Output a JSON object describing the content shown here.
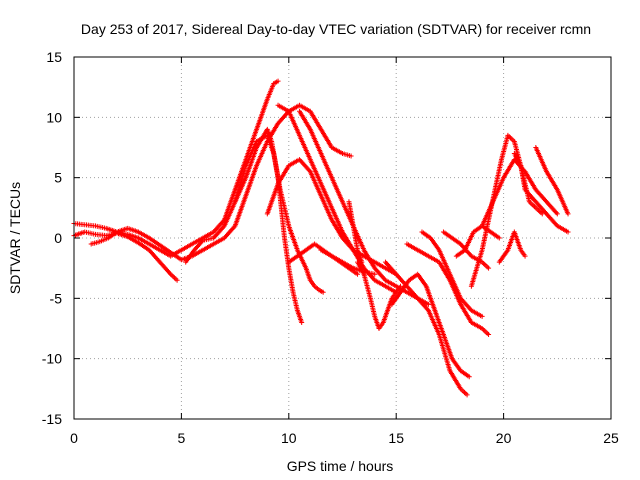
{
  "chart_data": {
    "type": "scatter",
    "title": "Day 253 of 2017, Sidereal Day-to-day VTEC variation (SDTVAR) for receiver rcmn",
    "xlabel": "GPS time / hours",
    "ylabel": "SDTVAR / TECUs",
    "xlim": [
      0,
      25
    ],
    "ylim": [
      -15,
      15
    ],
    "x_ticks": [
      "0",
      "5",
      "10",
      "15",
      "20",
      "25"
    ],
    "y_ticks": [
      "15",
      "10",
      "5",
      "0",
      "-5",
      "-10",
      "-15"
    ],
    "grid": true,
    "marker": "+",
    "color": "#ff0000",
    "series": [
      {
        "x": [
          0.0,
          0.5,
          1.0,
          1.5,
          2.0,
          2.5,
          3.0,
          3.5,
          4.0,
          4.5,
          5.0,
          5.5,
          6.0,
          6.5,
          7.0,
          7.5,
          8.0,
          8.5,
          9.0,
          9.3,
          9.5
        ],
        "values": [
          1.2,
          1.1,
          1.0,
          0.8,
          0.5,
          0.3,
          0.0,
          -0.5,
          -1.0,
          -1.5,
          -1.0,
          -0.5,
          0.0,
          0.5,
          1.5,
          4.0,
          6.5,
          9.0,
          11.5,
          12.8,
          13.0
        ]
      },
      {
        "x": [
          0.0,
          0.5,
          1.0,
          1.5,
          2.0,
          2.5,
          3.0,
          3.5,
          4.0,
          4.5,
          4.8
        ],
        "values": [
          0.2,
          0.5,
          0.3,
          0.2,
          0.4,
          0.1,
          -0.4,
          -1.0,
          -2.0,
          -3.0,
          -3.5
        ]
      },
      {
        "x": [
          0.8,
          1.2,
          1.6,
          2.0,
          2.5,
          3.0,
          3.5,
          4.0,
          4.5,
          5.0,
          5.5,
          6.0,
          6.5,
          7.0,
          7.5,
          8.0,
          8.5,
          9.0,
          9.5,
          10.0,
          10.5,
          11.0,
          11.5,
          12.0,
          12.5,
          12.9
        ],
        "values": [
          -0.5,
          -0.3,
          0.0,
          0.5,
          0.8,
          0.5,
          0.0,
          -0.6,
          -1.2,
          -1.8,
          -1.5,
          -1.0,
          -0.5,
          0.0,
          1.0,
          3.5,
          6.0,
          8.0,
          9.5,
          10.5,
          11.0,
          10.5,
          9.0,
          7.5,
          7.0,
          6.8
        ]
      },
      {
        "x": [
          5.2,
          5.6,
          6.0,
          6.5,
          7.0,
          7.5,
          8.0,
          8.5,
          9.0,
          9.2,
          9.5,
          9.8,
          10.0,
          10.2,
          10.4,
          10.6
        ],
        "values": [
          -2.0,
          -1.0,
          -0.2,
          0.0,
          1.0,
          3.0,
          5.0,
          7.5,
          9.0,
          8.0,
          5.0,
          0.0,
          -2.5,
          -4.5,
          -6.0,
          -7.0
        ]
      },
      {
        "x": [
          7.5,
          8.0,
          8.5,
          9.0,
          9.3,
          9.6,
          10.0,
          10.4,
          10.8,
          11.0,
          11.2,
          11.4,
          11.6
        ],
        "values": [
          3.0,
          6.0,
          8.0,
          8.5,
          7.0,
          4.0,
          1.0,
          -1.0,
          -2.5,
          -3.5,
          -4.0,
          -4.3,
          -4.5
        ]
      },
      {
        "x": [
          9.0,
          9.5,
          10.0,
          10.5,
          11.0,
          11.5,
          12.0,
          12.5,
          13.0,
          13.5,
          14.0,
          14.5,
          15.0
        ],
        "values": [
          2.0,
          4.5,
          6.0,
          6.5,
          5.5,
          3.5,
          1.5,
          0.0,
          -1.0,
          -1.5,
          -2.0,
          -2.5,
          -3.0
        ]
      },
      {
        "x": [
          9.5,
          10.0,
          10.5,
          11.0,
          11.5,
          12.0,
          12.5,
          13.0,
          13.5,
          14.0,
          14.5,
          15.0
        ],
        "values": [
          11.0,
          10.5,
          8.5,
          6.5,
          4.5,
          2.5,
          0.5,
          -1.0,
          -2.5,
          -3.5,
          -4.0,
          -4.5
        ]
      },
      {
        "x": [
          10.0,
          10.4,
          10.8,
          11.2,
          11.6,
          12.0,
          12.4,
          12.8,
          13.2
        ],
        "values": [
          -2.0,
          -1.5,
          -1.0,
          -0.5,
          -1.0,
          -1.5,
          -2.0,
          -2.5,
          -3.0
        ]
      },
      {
        "x": [
          10.5,
          11.0,
          11.5,
          12.0,
          12.5,
          13.0,
          13.5,
          14.0,
          14.5,
          15.0,
          15.5,
          16.0,
          16.5
        ],
        "values": [
          10.5,
          9.0,
          7.0,
          5.0,
          3.0,
          1.0,
          -1.0,
          -2.5,
          -3.5,
          -4.0,
          -4.5,
          -5.0,
          -5.5
        ]
      },
      {
        "x": [
          11.5,
          12.0,
          12.5,
          13.0,
          13.5,
          14.0
        ],
        "values": [
          -1.0,
          -1.5,
          -2.0,
          -2.5,
          -2.8,
          -3.0
        ]
      },
      {
        "x": [
          12.8,
          13.0,
          13.2,
          13.4
        ],
        "values": [
          3.0,
          1.0,
          -1.0,
          -2.0
        ]
      },
      {
        "x": [
          13.2,
          13.5,
          13.8,
          14.0,
          14.2,
          14.4,
          14.6,
          14.8,
          15.0,
          15.2
        ],
        "values": [
          -2.0,
          -3.0,
          -5.0,
          -6.5,
          -7.5,
          -7.0,
          -6.0,
          -5.0,
          -4.5,
          -4.0
        ]
      },
      {
        "x": [
          14.8,
          15.2,
          15.6,
          16.0,
          16.4,
          16.8,
          17.2,
          17.6,
          18.0,
          18.4
        ],
        "values": [
          -5.5,
          -4.5,
          -3.5,
          -3.0,
          -4.0,
          -6.0,
          -8.0,
          -10.0,
          -11.0,
          -11.5
        ]
      },
      {
        "x": [
          14.5,
          15.0,
          15.5,
          16.0,
          16.5,
          17.0,
          17.5,
          18.0,
          18.3
        ],
        "values": [
          -2.0,
          -3.0,
          -4.0,
          -5.0,
          -6.0,
          -8.0,
          -11.0,
          -12.5,
          -13.0
        ]
      },
      {
        "x": [
          15.5,
          16.0,
          16.5,
          17.0,
          17.5,
          18.0,
          18.5,
          19.0,
          19.3
        ],
        "values": [
          -0.5,
          -1.0,
          -1.5,
          -2.0,
          -3.5,
          -5.5,
          -7.0,
          -7.5,
          -8.0
        ]
      },
      {
        "x": [
          16.2,
          16.6,
          17.0,
          17.5,
          18.0,
          18.5,
          19.0
        ],
        "values": [
          0.5,
          0.0,
          -1.0,
          -3.0,
          -5.0,
          -6.0,
          -6.5
        ]
      },
      {
        "x": [
          17.2,
          17.6,
          18.0,
          18.5,
          19.0,
          19.3
        ],
        "values": [
          0.5,
          0.0,
          -0.5,
          -1.5,
          -2.0,
          -2.5
        ]
      },
      {
        "x": [
          17.8,
          18.2,
          18.6,
          19.0,
          19.4,
          19.8
        ],
        "values": [
          -1.5,
          -1.0,
          0.5,
          1.0,
          0.5,
          0.0
        ]
      },
      {
        "x": [
          18.5,
          19.0,
          19.3,
          19.6,
          19.9,
          20.2,
          20.5,
          20.8,
          21.0,
          21.5,
          22.0,
          22.5,
          23.0
        ],
        "values": [
          -4.0,
          -1.0,
          1.5,
          4.0,
          6.5,
          8.5,
          8.0,
          6.0,
          4.0,
          3.0,
          2.0,
          1.0,
          0.5
        ]
      },
      {
        "x": [
          19.0,
          19.5,
          20.0,
          20.5,
          21.0,
          21.5,
          22.0,
          22.5
        ],
        "values": [
          1.0,
          3.0,
          5.0,
          6.5,
          5.5,
          4.0,
          3.0,
          2.0
        ]
      },
      {
        "x": [
          19.8,
          20.2,
          20.5,
          20.8,
          21.0
        ],
        "values": [
          -2.0,
          -1.0,
          0.5,
          -1.0,
          -1.5
        ]
      },
      {
        "x": [
          20.5,
          20.8,
          21.0,
          21.2,
          21.5,
          21.8
        ],
        "values": [
          7.0,
          6.0,
          4.5,
          3.0,
          2.5,
          2.0
        ]
      },
      {
        "x": [
          21.5,
          22.0,
          22.5,
          23.0
        ],
        "values": [
          7.5,
          5.5,
          4.0,
          2.0
        ]
      }
    ]
  }
}
